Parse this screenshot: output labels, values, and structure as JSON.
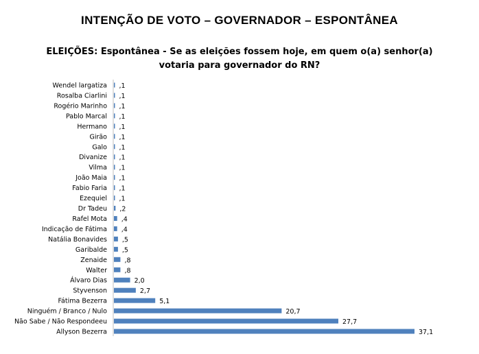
{
  "page_title": "INTENÇÃO DE VOTO – GOVERNADOR – ESPONTÂNEA",
  "chart_data": {
    "type": "bar",
    "orientation": "horizontal",
    "title_line1": "ELEIÇÕES: Espontânea - Se as eleições fossem hoje, em quem o(a) senhor(a)",
    "title_line2": "votaria para governador do RN?",
    "categories": [
      "Wendel largatiza",
      "Rosalba Ciarlini",
      "Rogério Marinho",
      "Pablo Marcal",
      "Hermano",
      "Girão",
      "Galo",
      "Divanize",
      "Vilma",
      "João Maia",
      "Fabio Faria",
      "Ezequiel",
      "Dr Tadeu",
      "Rafel Mota",
      "Indicação de Fátima",
      "Natália Bonavides",
      "Garibalde",
      "Zenaide",
      "Walter",
      "Álvaro Dias",
      "Styvenson",
      "Fátima Bezerra",
      "Ninguém / Branco / Nulo",
      "Não Sabe / Não Respondeeu",
      "Allyson Bezerra"
    ],
    "values": [
      0.1,
      0.1,
      0.1,
      0.1,
      0.1,
      0.1,
      0.1,
      0.1,
      0.1,
      0.1,
      0.1,
      0.1,
      0.2,
      0.4,
      0.4,
      0.5,
      0.5,
      0.8,
      0.8,
      2.0,
      2.7,
      5.1,
      20.7,
      27.7,
      37.1
    ],
    "labels": [
      ",1",
      ",1",
      ",1",
      ",1",
      ",1",
      ",1",
      ",1",
      ",1",
      ",1",
      ",1",
      ",1",
      ",1",
      ",2",
      ",4",
      ",4",
      ",5",
      ",5",
      ",8",
      ",8",
      "2,0",
      "2,7",
      "5,1",
      "20,7",
      "27,7",
      "37,1"
    ],
    "xlim": [
      0,
      37.1
    ],
    "bar_color": "#4f81bd",
    "grid": false,
    "legend": "none"
  }
}
